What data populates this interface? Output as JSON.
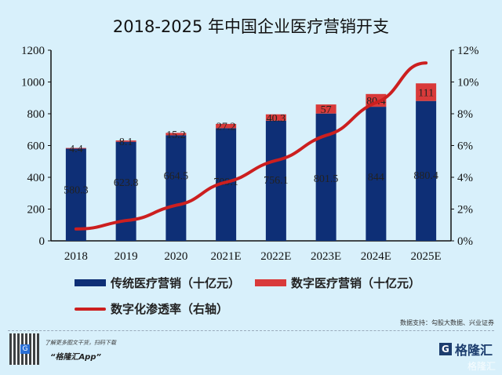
{
  "chart_data": {
    "type": "bar",
    "title": "2018-2025 年中国企业医疗营销开支",
    "categories": [
      "2018",
      "2019",
      "2020",
      "2021E",
      "2022E",
      "2023E",
      "2024E",
      "2025E"
    ],
    "series": [
      {
        "name": "传统医疗营销（十亿元）",
        "type": "bar",
        "stack": "total",
        "color": "#0e2f76",
        "values": [
          580.3,
          623.8,
          664.5,
          709.1,
          756.1,
          801.5,
          844,
          880.4
        ],
        "labels": [
          "580.3",
          "623.8",
          "664.5",
          "709.1",
          "756.1",
          "801.5",
          "844",
          "880.4"
        ]
      },
      {
        "name": "数字医疗营销（十亿元）",
        "type": "bar",
        "stack": "total",
        "color": "#d93a3a",
        "values": [
          4.4,
          8.1,
          15.2,
          27.2,
          40.3,
          57,
          80.4,
          111
        ],
        "labels": [
          "4.4",
          "8.1",
          "15.2",
          "27.2",
          "40.3",
          "57",
          "80.4",
          "111"
        ]
      },
      {
        "name": "数字化渗透率（右轴）",
        "type": "line",
        "axis": "right",
        "color": "#cc1f1f",
        "values": [
          0.75,
          1.28,
          2.24,
          3.69,
          5.06,
          6.64,
          8.7,
          11.2
        ]
      }
    ],
    "y_left": {
      "range": [
        0,
        1200
      ],
      "ticks": [
        0,
        200,
        400,
        600,
        800,
        1000,
        1200
      ]
    },
    "y_right": {
      "range": [
        0,
        12
      ],
      "unit": "%",
      "ticks": [
        "0%",
        "2%",
        "4%",
        "6%",
        "8%",
        "10%",
        "12%"
      ]
    },
    "grid": false,
    "legend_placement": "bottom"
  },
  "legend": [
    "传统医疗营销（十亿元）",
    "数字医疗营销（十亿元）",
    "数字化渗透率（右轴）"
  ],
  "footer": {
    "source": "数据支持：勾股大数据、兴业证券",
    "promo": "了解更多图文干货，扫码下载",
    "app": "“格隆汇App”",
    "logo": "格隆汇",
    "watermark": "格隆汇"
  }
}
